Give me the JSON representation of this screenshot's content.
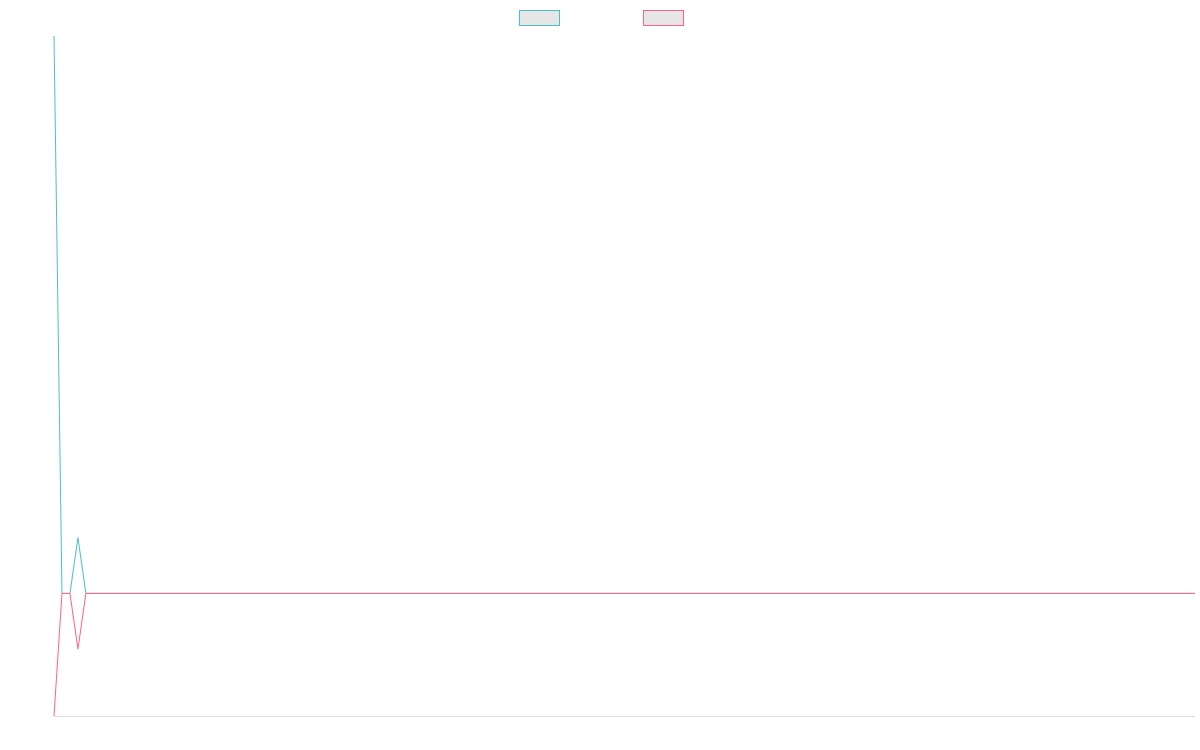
{
  "chart_data": {
    "type": "line",
    "x": [
      0,
      1,
      2,
      3,
      4,
      143
    ],
    "xlim": [
      0,
      143
    ],
    "ylim": [
      -2.2,
      10
    ],
    "grid": false,
    "legend": "top",
    "series": [
      {
        "color": "#4bc0c0",
        "values": [
          10,
          0,
          0,
          1,
          0,
          0
        ]
      },
      {
        "color": "#ff6384",
        "values": [
          -2.2,
          0,
          0,
          -1,
          0,
          0
        ]
      }
    ]
  }
}
